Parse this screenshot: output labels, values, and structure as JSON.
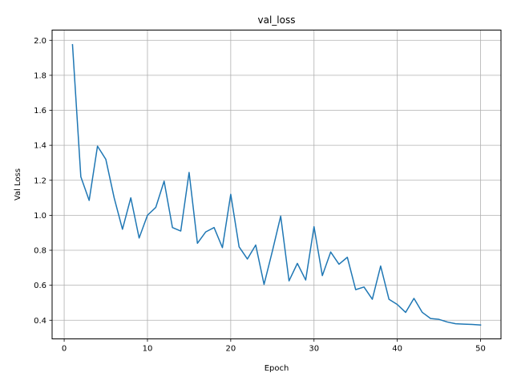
{
  "chart_data": {
    "type": "line",
    "title": "val_loss",
    "xlabel": "Epoch",
    "ylabel": "Val Loss",
    "xlim": [
      -1.45,
      52.45
    ],
    "ylim": [
      0.2935,
      2.0585
    ],
    "xticks": [
      0,
      10,
      20,
      30,
      40,
      50
    ],
    "yticks": [
      0.4,
      0.6,
      0.8,
      1.0,
      1.2,
      1.4,
      1.6,
      1.8,
      2.0
    ],
    "xtick_labels": [
      "0",
      "10",
      "20",
      "30",
      "40",
      "50"
    ],
    "ytick_labels": [
      "0.4",
      "0.6",
      "0.8",
      "1.0",
      "1.2",
      "1.4",
      "1.6",
      "1.8",
      "2.0"
    ],
    "grid": true,
    "series": [
      {
        "color": "#1f77b4",
        "x": [
          1,
          2,
          3,
          4,
          5,
          6,
          7,
          8,
          9,
          10,
          11,
          12,
          13,
          14,
          15,
          16,
          17,
          18,
          19,
          20,
          21,
          22,
          23,
          24,
          25,
          26,
          27,
          28,
          29,
          30,
          31,
          32,
          33,
          34,
          35,
          36,
          37,
          38,
          39,
          40,
          41,
          42,
          43,
          44,
          45,
          46,
          47,
          48,
          49,
          50
        ],
        "values": [
          1.975,
          1.22,
          1.085,
          1.395,
          1.32,
          1.1,
          0.92,
          1.1,
          0.87,
          1.0,
          1.045,
          1.195,
          0.93,
          0.91,
          1.245,
          0.84,
          0.905,
          0.93,
          0.815,
          1.12,
          0.82,
          0.75,
          0.83,
          0.605,
          0.795,
          0.995,
          0.625,
          0.725,
          0.63,
          0.935,
          0.655,
          0.79,
          0.72,
          0.76,
          0.575,
          0.59,
          0.52,
          0.71,
          0.52,
          0.49,
          0.445,
          0.525,
          0.445,
          0.41,
          0.405,
          0.39,
          0.38,
          0.378,
          0.376,
          0.373
        ]
      }
    ]
  }
}
